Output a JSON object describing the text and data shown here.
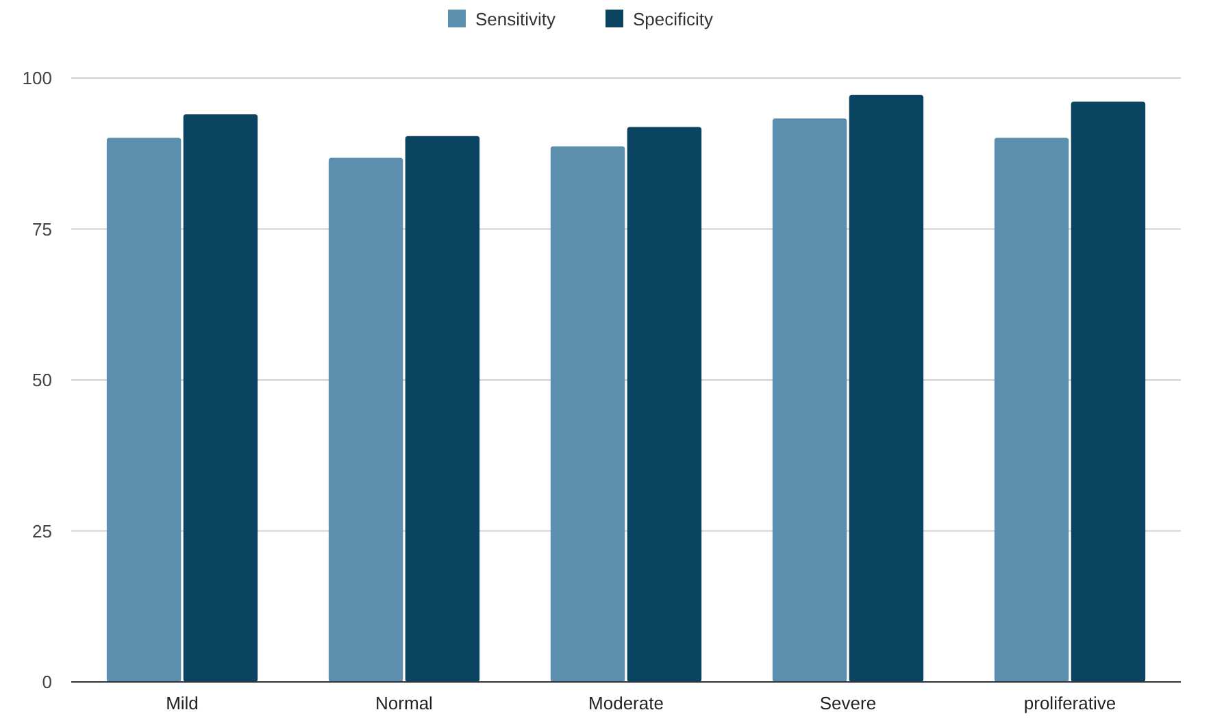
{
  "chart_data": {
    "type": "bar",
    "categories": [
      "Mild",
      "Normal",
      "Moderate",
      "Severe",
      "proliferative"
    ],
    "series": [
      {
        "name": "Sensitivity",
        "color": "#5b8fad",
        "values": [
          90.1,
          86.8,
          88.7,
          93.3,
          90.1
        ]
      },
      {
        "name": "Specificity",
        "color": "#0b4461",
        "values": [
          94.0,
          90.4,
          91.9,
          97.2,
          96.1
        ]
      }
    ],
    "ylim": [
      0,
      100
    ],
    "yticks": [
      0,
      25,
      50,
      75,
      100
    ],
    "grid": "y",
    "legend": "top"
  }
}
